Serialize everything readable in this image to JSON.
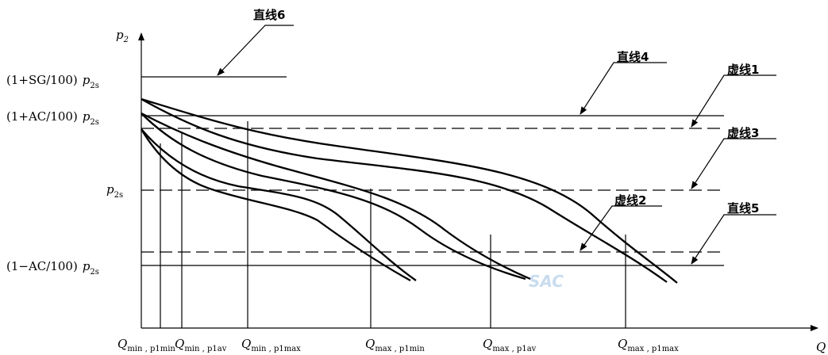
{
  "axes": {
    "y_label": "p",
    "y_sub": "2",
    "x_label": "Q"
  },
  "y_ticks": {
    "sg": {
      "prefix": "(1+SG/100)",
      "var": "p",
      "sub": "2s"
    },
    "ac_plus": {
      "prefix": "(1+AC/100)",
      "var": "p",
      "sub": "2s"
    },
    "base": {
      "prefix": "",
      "var": "p",
      "sub": "2s"
    },
    "ac_minus": {
      "prefix": "(1−AC/100)",
      "var": "p",
      "sub": "2s"
    }
  },
  "x_ticks": [
    {
      "var": "Q",
      "sub": "min , p1min"
    },
    {
      "var": "Q",
      "sub": "min , p1av"
    },
    {
      "var": "Q",
      "sub": "min , p1max"
    },
    {
      "var": "Q",
      "sub": "max , p1min"
    },
    {
      "var": "Q",
      "sub": "max , p1av"
    },
    {
      "var": "Q",
      "sub": "max , p1max"
    }
  ],
  "callouts": {
    "line6": "直线6",
    "line4": "直线4",
    "dash1": "虚线1",
    "dash3": "虚线3",
    "dash2": "虚线2",
    "line5": "直线5"
  },
  "watermark": "SAC"
}
